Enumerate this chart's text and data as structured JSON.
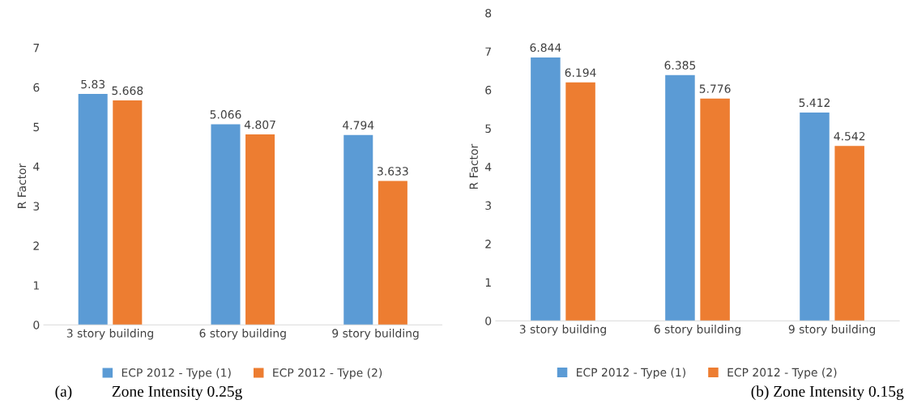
{
  "chart_data": [
    {
      "type": "bar",
      "ylabel": "R Factor",
      "categories": [
        "3 story building",
        "6 story building",
        "9 story building"
      ],
      "series": [
        {
          "name": "ECP 2012 - Type (1)",
          "color": "#5b9bd5",
          "values": [
            5.83,
            5.066,
            4.794
          ]
        },
        {
          "name": "ECP 2012 - Type (2)",
          "color": "#ed7d31",
          "values": [
            5.668,
            4.807,
            3.633
          ]
        }
      ],
      "ylim": [
        0,
        7
      ],
      "yticks": [
        0,
        1,
        2,
        3,
        4,
        5,
        6,
        7
      ],
      "grid": false,
      "legend": "bottom",
      "data_labels": true,
      "annotations": [
        "(a)          Zone Intensity 0.25g"
      ]
    },
    {
      "type": "bar",
      "ylabel": "R Factor",
      "categories": [
        "3 story building",
        "6 story building",
        "9 story building"
      ],
      "series": [
        {
          "name": "ECP 2012 - Type (1)",
          "color": "#5b9bd5",
          "values": [
            6.844,
            6.385,
            5.412
          ]
        },
        {
          "name": "ECP 2012 - Type (2)",
          "color": "#ed7d31",
          "values": [
            6.194,
            5.776,
            4.542
          ]
        }
      ],
      "ylim": [
        0,
        8
      ],
      "yticks": [
        0,
        1,
        2,
        3,
        4,
        5,
        6,
        7,
        8
      ],
      "grid": false,
      "legend": "bottom",
      "data_labels": true,
      "annotations": [
        "(b) Zone Intensity 0.15g"
      ]
    }
  ]
}
